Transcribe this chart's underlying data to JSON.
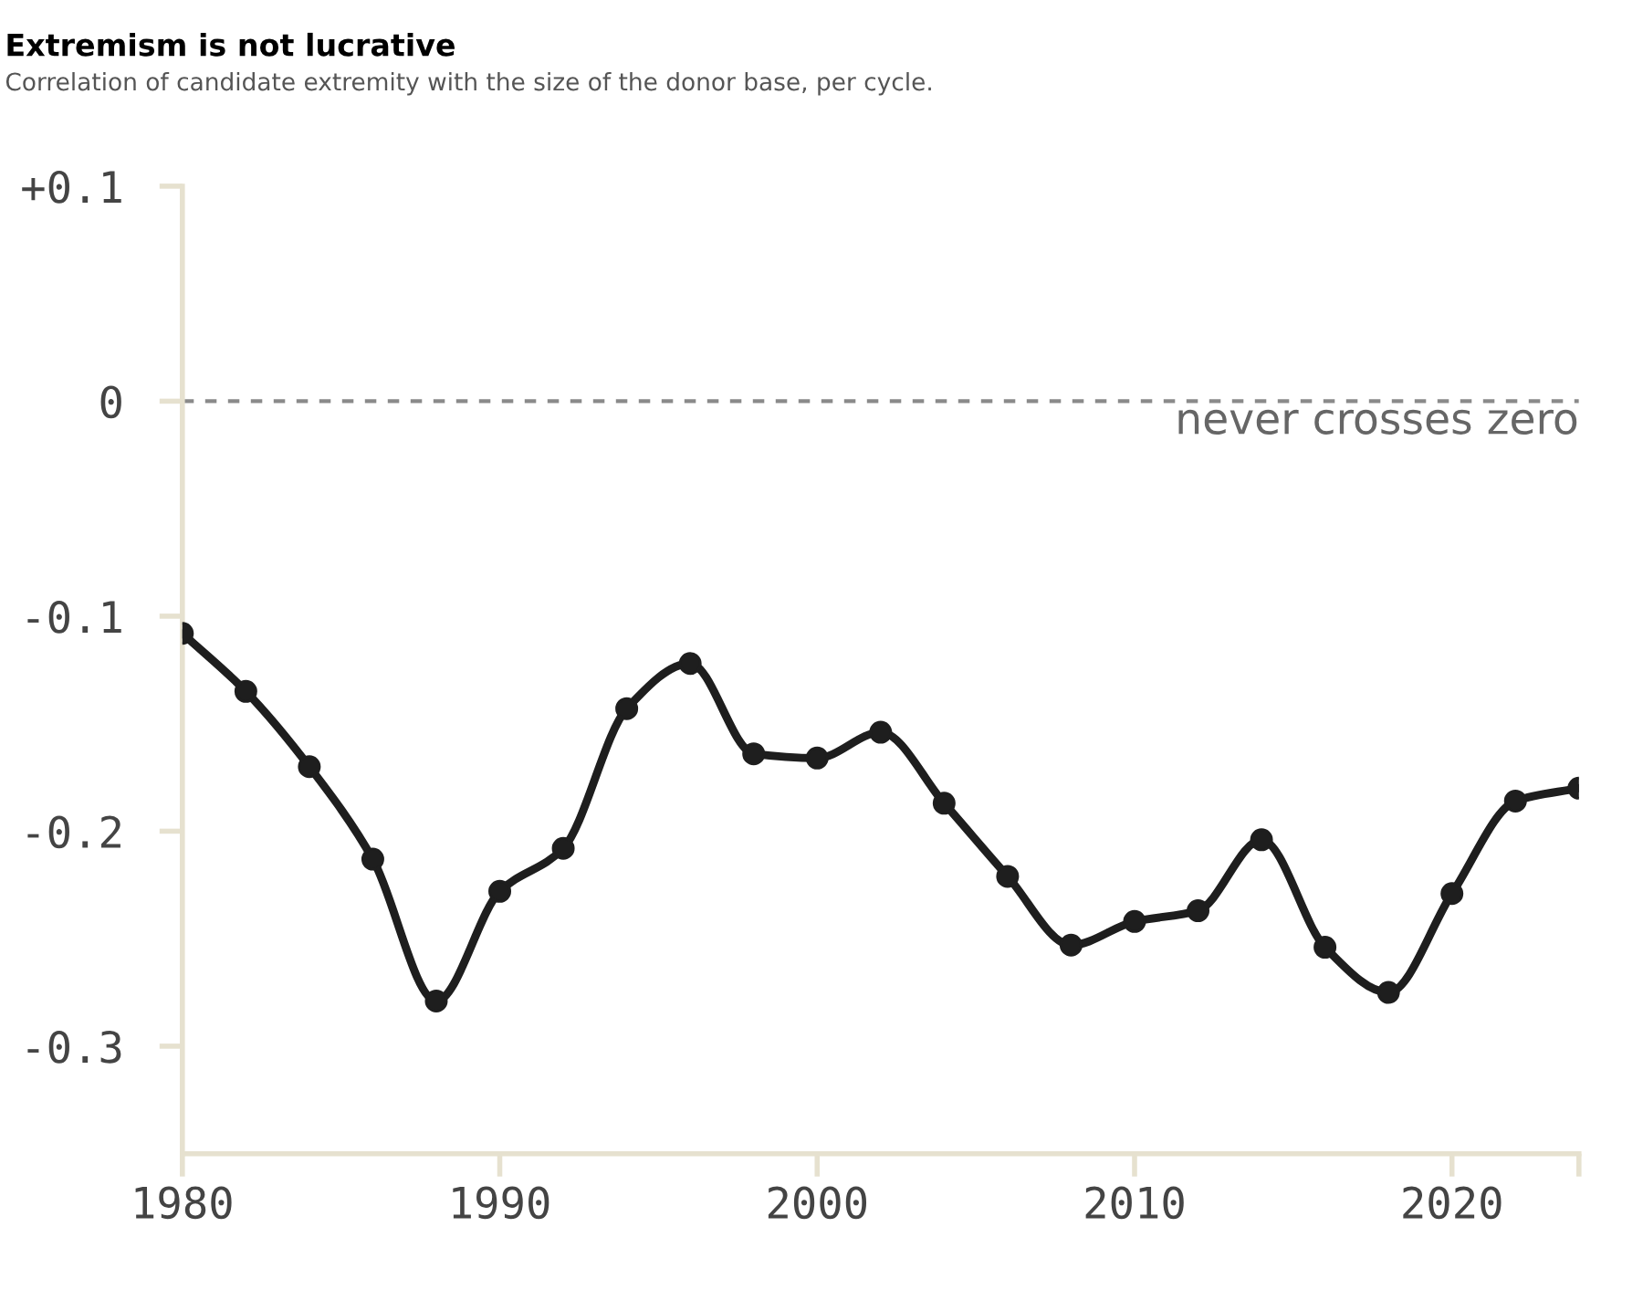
{
  "chart_data": {
    "type": "line",
    "title": "Extremism is not lucrative",
    "subtitle": "Correlation of candidate extremity with the size of the donor base, per cycle.",
    "x": [
      1980,
      1982,
      1984,
      1986,
      1988,
      1990,
      1992,
      1994,
      1996,
      1998,
      2000,
      2002,
      2004,
      2006,
      2008,
      2010,
      2012,
      2014,
      2016,
      2018,
      2020,
      2022,
      2024
    ],
    "series": [
      {
        "color": "#1e1e1e",
        "values": [
          -0.108,
          -0.135,
          -0.17,
          -0.213,
          -0.279,
          -0.228,
          -0.208,
          -0.143,
          -0.122,
          -0.164,
          -0.166,
          -0.154,
          -0.187,
          -0.221,
          -0.253,
          -0.242,
          -0.237,
          -0.204,
          -0.254,
          -0.275,
          -0.229,
          -0.186,
          -0.18
        ]
      }
    ],
    "xlim": [
      1980,
      2024
    ],
    "xticks": [
      1980,
      1990,
      2000,
      2010,
      2020,
      {
        "value": 2024,
        "label": null
      }
    ],
    "ylim": [
      -0.35,
      0.1
    ],
    "yticks": [
      {
        "value": 0.1,
        "label": "+0.1"
      },
      0,
      {
        "value": -0.1,
        "label": "-0.1"
      },
      {
        "value": -0.2,
        "label": "-0.2"
      },
      {
        "value": -0.3,
        "label": "-0.3"
      }
    ],
    "ref_lines": [
      {
        "axis": "y",
        "value": 0,
        "label": "never crosses zero",
        "color": "#8a8a8a",
        "line_style": "dashed"
      }
    ],
    "marker": "circle",
    "line_style": "solid",
    "grid": false,
    "legend": false
  }
}
